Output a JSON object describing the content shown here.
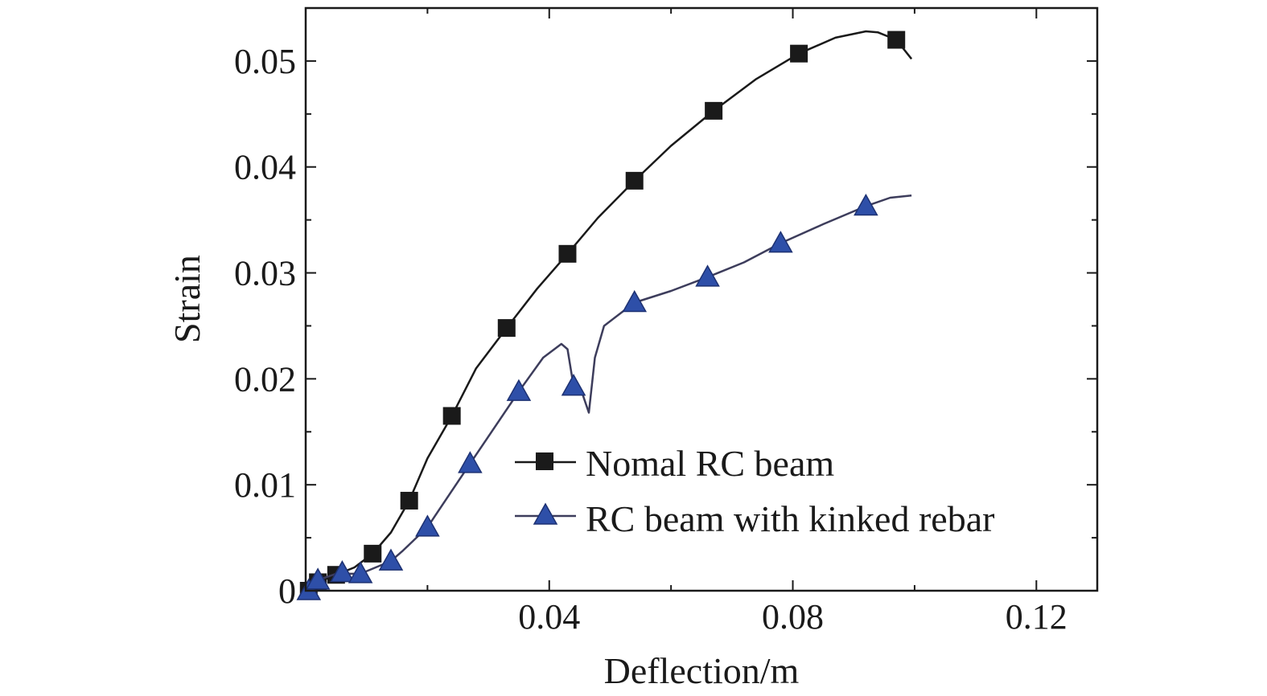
{
  "chart_data": {
    "type": "line",
    "xlabel": "Deflection/m",
    "ylabel": "Strain",
    "xlim": [
      0,
      0.13
    ],
    "ylim": [
      0,
      0.055
    ],
    "x_ticks": [
      {
        "value": 0.04,
        "label": "0.04"
      },
      {
        "value": 0.08,
        "label": "0.08"
      },
      {
        "value": 0.12,
        "label": "0.12"
      }
    ],
    "x_minor_ticks": [
      0.02,
      0.06,
      0.1
    ],
    "y_ticks": [
      {
        "value": 0,
        "label": "0"
      },
      {
        "value": 0.01,
        "label": "0.01"
      },
      {
        "value": 0.02,
        "label": "0.02"
      },
      {
        "value": 0.03,
        "label": "0.03"
      },
      {
        "value": 0.04,
        "label": "0.04"
      },
      {
        "value": 0.05,
        "label": "0.05"
      }
    ],
    "y_minor_ticks": [
      0.005,
      0.015,
      0.025,
      0.035,
      0.045
    ],
    "legend_position": "lower-right",
    "series": [
      {
        "name": "Nomal RC beam",
        "color": "#1a1a1a",
        "marker": "square",
        "marker_color": "#1a1a1a",
        "curve": [
          [
            0,
            0
          ],
          [
            0.002,
            0.0008
          ],
          [
            0.005,
            0.0015
          ],
          [
            0.008,
            0.0022
          ],
          [
            0.011,
            0.0035
          ],
          [
            0.014,
            0.0055
          ],
          [
            0.017,
            0.0085
          ],
          [
            0.02,
            0.0125
          ],
          [
            0.024,
            0.0165
          ],
          [
            0.028,
            0.021
          ],
          [
            0.033,
            0.0248
          ],
          [
            0.038,
            0.0285
          ],
          [
            0.043,
            0.0318
          ],
          [
            0.048,
            0.0352
          ],
          [
            0.054,
            0.0387
          ],
          [
            0.06,
            0.042
          ],
          [
            0.067,
            0.0453
          ],
          [
            0.074,
            0.0483
          ],
          [
            0.081,
            0.0507
          ],
          [
            0.087,
            0.0522
          ],
          [
            0.092,
            0.0528
          ],
          [
            0.094,
            0.0527
          ],
          [
            0.097,
            0.052
          ],
          [
            0.0995,
            0.0502
          ]
        ],
        "markers": [
          [
            0.0005,
            0
          ],
          [
            0.002,
            0.0008
          ],
          [
            0.005,
            0.0015
          ],
          [
            0.011,
            0.0035
          ],
          [
            0.017,
            0.0085
          ],
          [
            0.024,
            0.0165
          ],
          [
            0.033,
            0.0248
          ],
          [
            0.043,
            0.0318
          ],
          [
            0.054,
            0.0387
          ],
          [
            0.067,
            0.0453
          ],
          [
            0.081,
            0.0507
          ],
          [
            0.097,
            0.052
          ]
        ]
      },
      {
        "name": "RC beam with kinked rebar",
        "color": "#3d3d5c",
        "marker": "triangle",
        "marker_color": "#2e4fa8",
        "curve": [
          [
            0,
            0
          ],
          [
            0.002,
            0.001
          ],
          [
            0.005,
            0.0016
          ],
          [
            0.009,
            0.0016
          ],
          [
            0.014,
            0.0028
          ],
          [
            0.016,
            0.0038
          ],
          [
            0.02,
            0.006
          ],
          [
            0.027,
            0.012
          ],
          [
            0.035,
            0.0188
          ],
          [
            0.039,
            0.022
          ],
          [
            0.042,
            0.0233
          ],
          [
            0.043,
            0.0228
          ],
          [
            0.044,
            0.0193
          ],
          [
            0.0455,
            0.0185
          ],
          [
            0.0465,
            0.0168
          ],
          [
            0.0475,
            0.022
          ],
          [
            0.049,
            0.025
          ],
          [
            0.054,
            0.0272
          ],
          [
            0.06,
            0.0283
          ],
          [
            0.066,
            0.0296
          ],
          [
            0.072,
            0.031
          ],
          [
            0.078,
            0.0328
          ],
          [
            0.085,
            0.0346
          ],
          [
            0.092,
            0.0363
          ],
          [
            0.096,
            0.0371
          ],
          [
            0.0995,
            0.0373
          ]
        ],
        "markers": [
          [
            0.0005,
            0
          ],
          [
            0.002,
            0.001
          ],
          [
            0.006,
            0.0017
          ],
          [
            0.009,
            0.0016
          ],
          [
            0.014,
            0.0028
          ],
          [
            0.02,
            0.006
          ],
          [
            0.027,
            0.012
          ],
          [
            0.035,
            0.0188
          ],
          [
            0.044,
            0.0193
          ],
          [
            0.054,
            0.0272
          ],
          [
            0.066,
            0.0296
          ],
          [
            0.078,
            0.0328
          ],
          [
            0.092,
            0.0363
          ]
        ]
      }
    ]
  }
}
